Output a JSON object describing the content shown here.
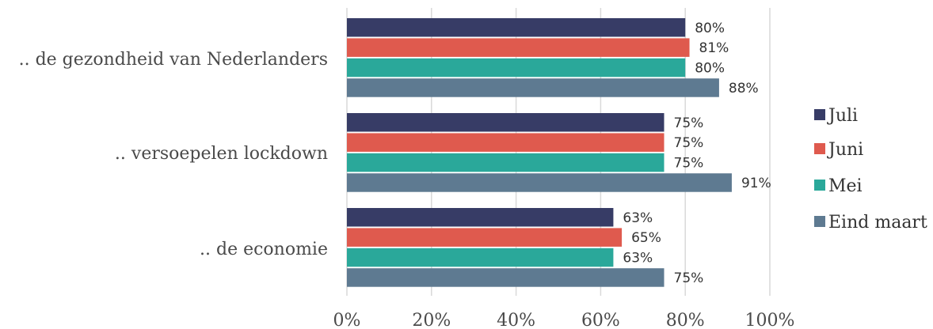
{
  "chart_data": {
    "type": "bar",
    "orientation": "horizontal",
    "categories": [
      ".. de gezondheid van Nederlanders",
      ".. versoepelen lockdown",
      ".. de economie"
    ],
    "series": [
      {
        "name": "Juli",
        "values": [
          80,
          75,
          63
        ],
        "labels": [
          "80%",
          "75%",
          "63%"
        ],
        "color": "#373c66"
      },
      {
        "name": "Juni",
        "values": [
          81,
          75,
          65
        ],
        "labels": [
          "81%",
          "75%",
          "65%"
        ],
        "color": "#df5a4e"
      },
      {
        "name": "Mei",
        "values": [
          80,
          75,
          63
        ],
        "labels": [
          "80%",
          "75%",
          "63%"
        ],
        "color": "#2aa89a"
      },
      {
        "name": "Eind maart",
        "values": [
          88,
          91,
          75
        ],
        "labels": [
          "88%",
          "91%",
          "75%"
        ],
        "color": "#5e7a91"
      }
    ],
    "xlim": [
      0,
      100
    ],
    "xticks": [
      "0%",
      "20%",
      "40%",
      "60%",
      "80%",
      "100%"
    ],
    "grid": "vertical",
    "legend_position": "right",
    "title": "",
    "xlabel": "",
    "ylabel": ""
  }
}
